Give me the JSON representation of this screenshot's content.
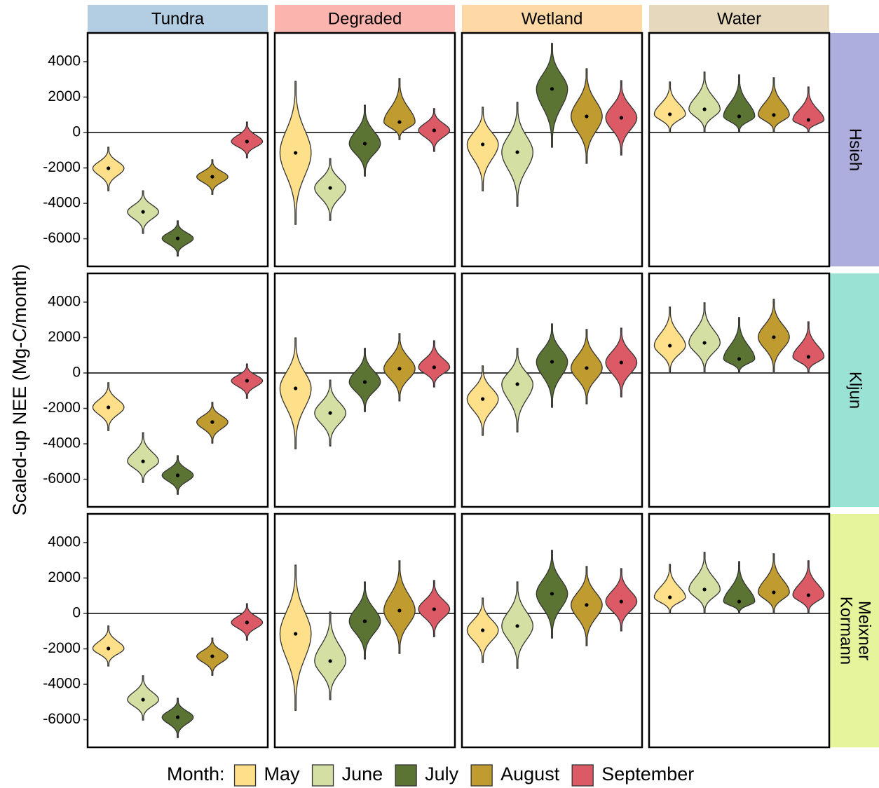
{
  "chart_data": {
    "type": "violin",
    "y_label": "Scaled-up NEE (Mg-C/month)",
    "legend_title": "Month:",
    "months": [
      "May",
      "June",
      "July",
      "August",
      "September"
    ],
    "colors": [
      "#FFE08A",
      "#D4DFA3",
      "#5B7434",
      "#BF9B30",
      "#DC5A66"
    ],
    "columns": [
      {
        "name": "Tundra",
        "color": "#B3CDE3"
      },
      {
        "name": "Degraded",
        "color": "#FBB4AE"
      },
      {
        "name": "Wetland",
        "color": "#FED9A6"
      },
      {
        "name": "Water",
        "color": "#E5D8BD"
      }
    ],
    "rows": [
      {
        "name": [
          "Hsieh"
        ],
        "color": "#ADADDE"
      },
      {
        "name": [
          "Kljun"
        ],
        "color": "#99E2D4"
      },
      {
        "name": [
          "Kormann",
          "Meixner"
        ],
        "color": "#E6F59C"
      }
    ],
    "ylim": [
      -7560,
      5620
    ],
    "yticks": [
      -6000,
      -4000,
      -2000,
      0,
      2000,
      4000
    ],
    "panels": [
      [
        {
          "median": [
            -2020,
            -4480,
            -5980,
            -2500,
            -510
          ],
          "min": [
            -3290,
            -5700,
            -6970,
            -3490,
            -1430
          ],
          "max": [
            -830,
            -3290,
            -4990,
            -1540,
            590
          ]
        },
        {
          "median": [
            -1150,
            -3130,
            -630,
            590,
            120
          ],
          "min": [
            -5190,
            -4950,
            -2460,
            -400,
            -1070
          ],
          "max": [
            2890,
            -1470,
            1540,
            3050,
            1350
          ]
        },
        {
          "median": [
            -670,
            -1110,
            2460,
            910,
            830
          ],
          "min": [
            -3290,
            -4160,
            -830,
            -1740,
            -1270
          ],
          "max": [
            1430,
            1700,
            5030,
            3600,
            2930
          ]
        },
        {
          "median": [
            1030,
            1310,
            910,
            990,
            710
          ],
          "min": [
            0,
            0,
            0,
            0,
            0
          ],
          "max": [
            2850,
            3410,
            3250,
            3090,
            2570
          ]
        }
      ],
      [
        {
          "median": [
            -1940,
            -4990,
            -5780,
            -2770,
            -440
          ],
          "min": [
            -3250,
            -6180,
            -6850,
            -3960,
            -1430
          ],
          "max": [
            -550,
            -3370,
            -4670,
            -1660,
            510
          ]
        },
        {
          "median": [
            -870,
            -2260,
            -510,
            240,
            320
          ],
          "min": [
            -4280,
            -4120,
            -2180,
            -1580,
            -790
          ],
          "max": [
            1980,
            -400,
            1390,
            2220,
            1820
          ]
        },
        {
          "median": [
            -1470,
            -630,
            630,
            280,
            590
          ],
          "min": [
            -3520,
            -3330,
            -1940,
            -1740,
            -1350
          ],
          "max": [
            400,
            1390,
            2770,
            2460,
            2530
          ]
        },
        {
          "median": [
            1540,
            1700,
            790,
            2020,
            910
          ],
          "min": [
            0,
            0,
            0,
            0,
            0
          ],
          "max": [
            3720,
            3960,
            3130,
            4160,
            2890
          ]
        }
      ],
      [
        {
          "median": [
            -1980,
            -4870,
            -5860,
            -2420,
            -510
          ],
          "min": [
            -2970,
            -6020,
            -7010,
            -3490,
            -1510
          ],
          "max": [
            -710,
            -3520,
            -4790,
            -1390,
            550
          ]
        },
        {
          "median": [
            -1150,
            -2690,
            -440,
            160,
            240
          ],
          "min": [
            -5470,
            -4870,
            -2570,
            -2260,
            -1310
          ],
          "max": [
            2730,
            80,
            1780,
            2970,
            1860
          ]
        },
        {
          "median": [
            -950,
            -710,
            1110,
            480,
            670
          ],
          "min": [
            -2770,
            -3090,
            -1390,
            -1820,
            -990
          ],
          "max": [
            870,
            1780,
            3560,
            2650,
            2530
          ]
        },
        {
          "median": [
            910,
            1350,
            670,
            1190,
            1030
          ],
          "min": [
            0,
            0,
            0,
            0,
            0
          ],
          "max": [
            2770,
            3450,
            2930,
            3370,
            2970
          ]
        }
      ]
    ]
  }
}
